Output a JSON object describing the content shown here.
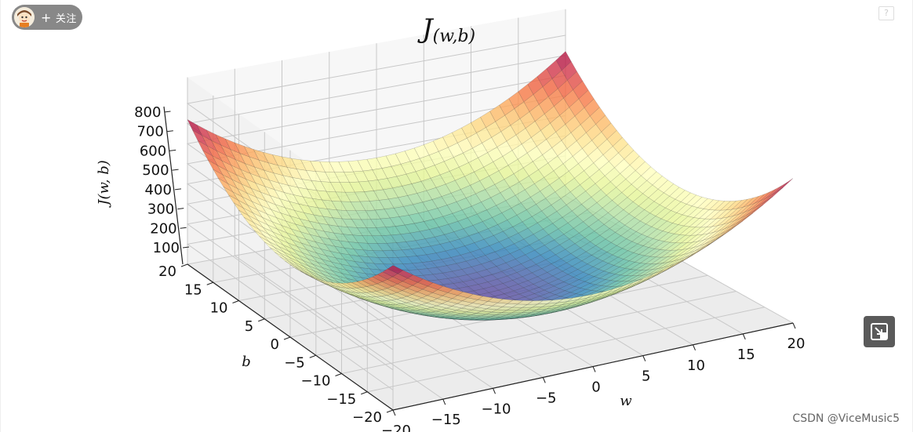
{
  "header": {
    "follow_label": "关注",
    "follow_plus": "+",
    "avatar_icon": "avatar-icon",
    "help_label": "?"
  },
  "watermark": "CSDN @ViceMusic5",
  "chart_data": {
    "type": "surface3d",
    "title": "J(w,b)",
    "title_main": "J",
    "title_sub": "(w,b)",
    "xlabel": "w",
    "ylabel": "b",
    "zlabel": "J(w, b)",
    "function": "J = (w^2 + b^2) * 0.9",
    "colormap": "Spectral_r",
    "x_range": [
      -20,
      20
    ],
    "y_range": [
      -20,
      20
    ],
    "zlim": [
      0,
      800
    ],
    "x_ticks": [
      -20,
      -15,
      -10,
      -5,
      0,
      5,
      10,
      15,
      20
    ],
    "y_ticks": [
      -20,
      -15,
      -10,
      -5,
      0,
      5,
      10,
      15,
      20
    ],
    "z_ticks": [
      100,
      200,
      300,
      400,
      500,
      600,
      700,
      800
    ],
    "grid": true
  }
}
